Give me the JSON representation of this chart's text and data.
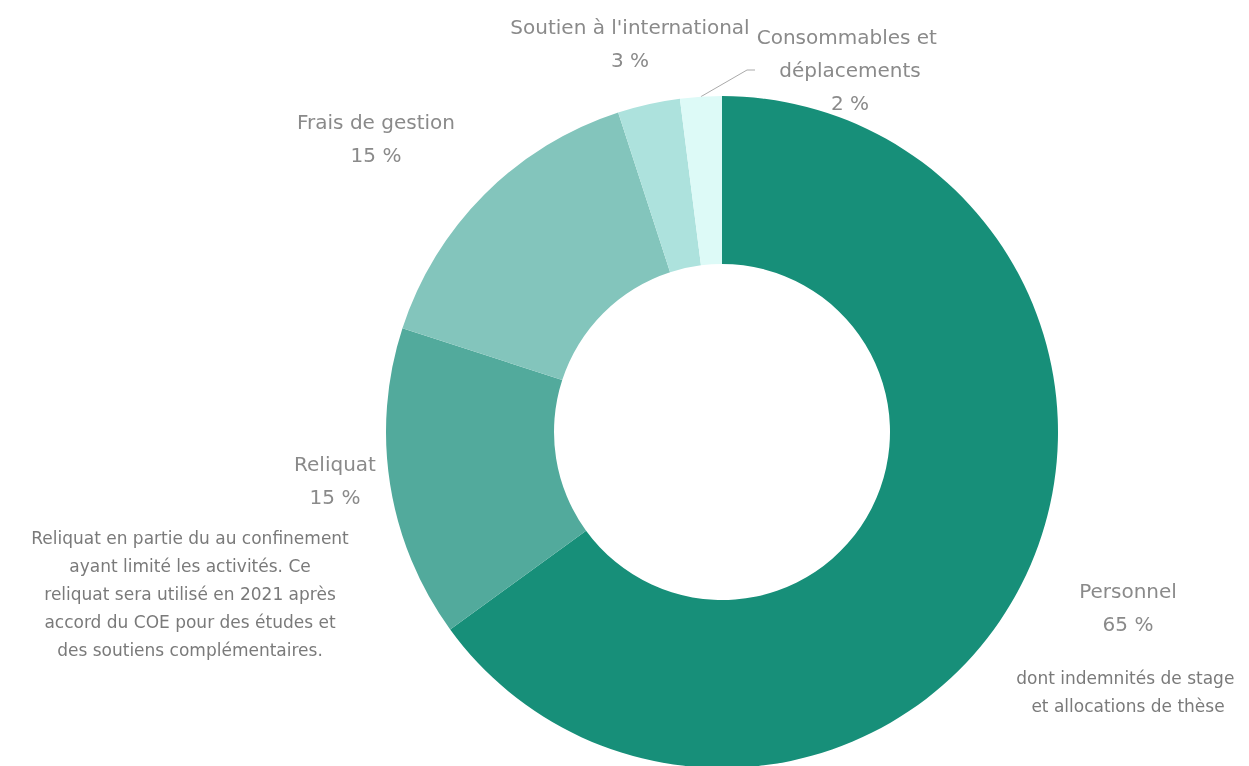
{
  "chart_data": {
    "type": "donut",
    "categories": [
      "Personnel",
      "Reliquat",
      "Frais de gestion",
      "Soutien à l'international",
      "Consommables et déplacements"
    ],
    "values": [
      65,
      15,
      15,
      3,
      2
    ],
    "value_labels": [
      "65 %",
      "15 %",
      "15 %",
      "3 %",
      "2 %"
    ],
    "colors": [
      "#178f79",
      "#52aa9c",
      "#83c5bc",
      "#ade2dd",
      "#ddfaf7"
    ],
    "legend": false,
    "annotations": [
      "Reliquat en partie du au confinement ayant limité les activités. Ce reliquat sera utilisé en 2021 après accord du COE pour des études et des soutiens complémentaires.",
      "dont indemnités de stage et allocations de thèse"
    ]
  }
}
